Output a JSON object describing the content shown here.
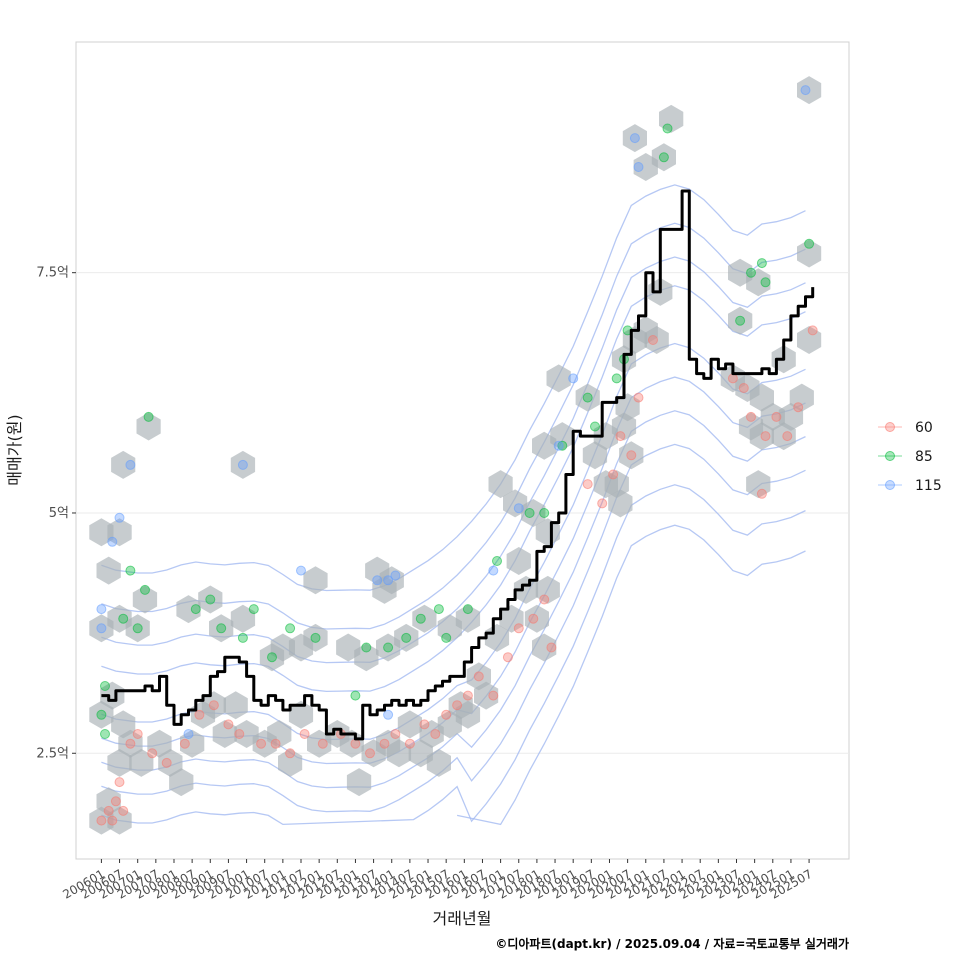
{
  "chart_data": {
    "type": "scatter",
    "title": "",
    "xlabel": "거래년월",
    "ylabel": "매매가(원)",
    "caption": "©디아파트(dapt.kr) / 2025.09.04 / 자료=국토교통부 실거래가",
    "ylim": [
      1.4,
      9.9
    ],
    "y_ticks": [
      {
        "value": 2.5,
        "label": "2.5억"
      },
      {
        "value": 5.0,
        "label": "5억"
      },
      {
        "value": 7.5,
        "label": "7.5억"
      }
    ],
    "x_range": [
      2005.3,
      2026.6
    ],
    "x_ticks": [
      "200601",
      "200607",
      "200701",
      "200707",
      "200801",
      "200807",
      "200901",
      "200907",
      "201001",
      "201007",
      "201101",
      "201107",
      "201201",
      "201207",
      "201301",
      "201307",
      "201401",
      "201407",
      "201501",
      "201507",
      "201601",
      "201607",
      "201701",
      "201707",
      "201801",
      "201807",
      "201901",
      "201907",
      "202001",
      "202007",
      "202101",
      "202107",
      "202201",
      "202207",
      "202301",
      "202307",
      "202401",
      "202407",
      "202501",
      "202507"
    ],
    "x_tick_values": [
      2006.0,
      2006.5,
      2007.0,
      2007.5,
      2008.0,
      2008.5,
      2009.0,
      2009.5,
      2010.0,
      2010.5,
      2011.0,
      2011.5,
      2012.0,
      2012.5,
      2013.0,
      2013.5,
      2014.0,
      2014.5,
      2015.0,
      2015.5,
      2016.0,
      2016.5,
      2017.0,
      2017.5,
      2018.0,
      2018.5,
      2019.0,
      2019.5,
      2020.0,
      2020.5,
      2021.0,
      2021.5,
      2022.0,
      2022.5,
      2023.0,
      2023.5,
      2024.0,
      2024.5,
      2025.0,
      2025.5
    ],
    "legend": {
      "position": "right",
      "items": [
        {
          "label": "60",
          "color": "#F8766D"
        },
        {
          "label": "85",
          "color": "#00BA38"
        },
        {
          "label": "115",
          "color": "#619CFF"
        }
      ]
    },
    "hexbins": [
      [
        2006.0,
        1.8
      ],
      [
        2006.5,
        1.8
      ],
      [
        2006.2,
        2.0
      ],
      [
        2006.5,
        2.4
      ],
      [
        2006.8,
        2.6
      ],
      [
        2007.1,
        2.4
      ],
      [
        2006.0,
        2.9
      ],
      [
        2006.3,
        3.1
      ],
      [
        2006.6,
        2.8
      ],
      [
        2007.6,
        2.6
      ],
      [
        2007.9,
        2.4
      ],
      [
        2008.2,
        2.2
      ],
      [
        2008.5,
        2.6
      ],
      [
        2008.8,
        2.9
      ],
      [
        2009.1,
        3.0
      ],
      [
        2009.4,
        2.7
      ],
      [
        2009.7,
        3.0
      ],
      [
        2010.0,
        2.7
      ],
      [
        2010.5,
        2.6
      ],
      [
        2010.9,
        2.7
      ],
      [
        2011.2,
        2.4
      ],
      [
        2011.5,
        2.9
      ],
      [
        2012.0,
        2.6
      ],
      [
        2012.5,
        2.7
      ],
      [
        2012.9,
        2.6
      ],
      [
        2013.1,
        2.2
      ],
      [
        2013.5,
        2.5
      ],
      [
        2013.9,
        2.6
      ],
      [
        2014.2,
        2.5
      ],
      [
        2014.5,
        2.8
      ],
      [
        2014.8,
        2.5
      ],
      [
        2015.1,
        2.7
      ],
      [
        2015.3,
        2.4
      ],
      [
        2015.6,
        2.8
      ],
      [
        2015.9,
        3.0
      ],
      [
        2016.1,
        2.9
      ],
      [
        2016.4,
        3.3
      ],
      [
        2016.6,
        3.1
      ],
      [
        2006.0,
        3.8
      ],
      [
        2006.5,
        3.9
      ],
      [
        2007.0,
        3.8
      ],
      [
        2007.2,
        4.1
      ],
      [
        2006.2,
        4.4
      ],
      [
        2006.5,
        4.8
      ],
      [
        2006.0,
        4.8
      ],
      [
        2006.6,
        5.5
      ],
      [
        2007.3,
        5.9
      ],
      [
        2008.4,
        4.0
      ],
      [
        2009.0,
        4.1
      ],
      [
        2009.3,
        3.8
      ],
      [
        2009.9,
        3.9
      ],
      [
        2011.0,
        3.6
      ],
      [
        2011.5,
        3.6
      ],
      [
        2011.9,
        3.7
      ],
      [
        2010.7,
        3.5
      ],
      [
        2012.8,
        3.6
      ],
      [
        2013.3,
        3.5
      ],
      [
        2013.9,
        3.6
      ],
      [
        2014.4,
        3.7
      ],
      [
        2014.9,
        3.9
      ],
      [
        2015.6,
        3.8
      ],
      [
        2016.1,
        3.9
      ],
      [
        2011.9,
        4.3
      ],
      [
        2013.6,
        4.4
      ],
      [
        2014.0,
        4.3
      ],
      [
        2013.8,
        4.2
      ],
      [
        2009.9,
        5.5
      ],
      [
        2016.9,
        3.7
      ],
      [
        2017.3,
        3.9
      ],
      [
        2017.7,
        4.2
      ],
      [
        2018.0,
        3.9
      ],
      [
        2018.3,
        4.2
      ],
      [
        2018.2,
        3.6
      ],
      [
        2017.5,
        4.5
      ],
      [
        2017.0,
        5.3
      ],
      [
        2017.4,
        5.1
      ],
      [
        2017.9,
        5.0
      ],
      [
        2018.3,
        4.8
      ],
      [
        2018.2,
        5.7
      ],
      [
        2018.7,
        5.8
      ],
      [
        2018.6,
        6.4
      ],
      [
        2019.4,
        6.2
      ],
      [
        2019.6,
        5.6
      ],
      [
        2019.9,
        5.3
      ],
      [
        2019.9,
        5.8
      ],
      [
        2020.2,
        5.3
      ],
      [
        2020.4,
        5.9
      ],
      [
        2020.5,
        6.1
      ],
      [
        2020.4,
        6.6
      ],
      [
        2020.7,
        6.8
      ],
      [
        2021.0,
        6.9
      ],
      [
        2021.4,
        7.3
      ],
      [
        2021.3,
        6.8
      ],
      [
        2020.7,
        8.9
      ],
      [
        2021.0,
        8.6
      ],
      [
        2021.5,
        8.7
      ],
      [
        2021.7,
        9.1
      ],
      [
        2020.3,
        5.1
      ],
      [
        2023.6,
        7.5
      ],
      [
        2024.1,
        7.4
      ],
      [
        2023.6,
        7.0
      ],
      [
        2023.4,
        6.4
      ],
      [
        2023.8,
        6.3
      ],
      [
        2023.9,
        5.9
      ],
      [
        2024.2,
        5.8
      ],
      [
        2024.5,
        6.0
      ],
      [
        2024.2,
        6.2
      ],
      [
        2024.8,
        5.8
      ],
      [
        2025.0,
        6.0
      ],
      [
        2025.3,
        6.2
      ],
      [
        2024.8,
        6.6
      ],
      [
        2025.5,
        6.8
      ],
      [
        2025.5,
        7.7
      ],
      [
        2025.5,
        9.4
      ],
      [
        2024.1,
        5.3
      ],
      [
        2020.6,
        5.6
      ]
    ],
    "scatter_points": [
      {
        "x": 2006.0,
        "y": 1.8,
        "s": "60"
      },
      {
        "x": 2006.2,
        "y": 1.9,
        "s": "60"
      },
      {
        "x": 2006.4,
        "y": 2.0,
        "s": "60"
      },
      {
        "x": 2006.5,
        "y": 2.2,
        "s": "60"
      },
      {
        "x": 2006.3,
        "y": 1.8,
        "s": "60"
      },
      {
        "x": 2006.6,
        "y": 1.9,
        "s": "60"
      },
      {
        "x": 2006.8,
        "y": 2.6,
        "s": "60"
      },
      {
        "x": 2007.0,
        "y": 2.7,
        "s": "60"
      },
      {
        "x": 2007.4,
        "y": 2.5,
        "s": "60"
      },
      {
        "x": 2007.8,
        "y": 2.4,
        "s": "60"
      },
      {
        "x": 2008.3,
        "y": 2.6,
        "s": "60"
      },
      {
        "x": 2008.7,
        "y": 2.9,
        "s": "60"
      },
      {
        "x": 2009.1,
        "y": 3.0,
        "s": "60"
      },
      {
        "x": 2009.5,
        "y": 2.8,
        "s": "60"
      },
      {
        "x": 2009.8,
        "y": 2.7,
        "s": "60"
      },
      {
        "x": 2010.4,
        "y": 2.6,
        "s": "60"
      },
      {
        "x": 2010.8,
        "y": 2.6,
        "s": "60"
      },
      {
        "x": 2011.2,
        "y": 2.5,
        "s": "60"
      },
      {
        "x": 2011.6,
        "y": 2.7,
        "s": "60"
      },
      {
        "x": 2012.1,
        "y": 2.6,
        "s": "60"
      },
      {
        "x": 2012.6,
        "y": 2.7,
        "s": "60"
      },
      {
        "x": 2013.0,
        "y": 2.6,
        "s": "60"
      },
      {
        "x": 2013.4,
        "y": 2.5,
        "s": "60"
      },
      {
        "x": 2013.8,
        "y": 2.6,
        "s": "60"
      },
      {
        "x": 2014.1,
        "y": 2.7,
        "s": "60"
      },
      {
        "x": 2014.5,
        "y": 2.6,
        "s": "60"
      },
      {
        "x": 2014.9,
        "y": 2.8,
        "s": "60"
      },
      {
        "x": 2015.2,
        "y": 2.7,
        "s": "60"
      },
      {
        "x": 2015.5,
        "y": 2.9,
        "s": "60"
      },
      {
        "x": 2015.8,
        "y": 3.0,
        "s": "60"
      },
      {
        "x": 2016.1,
        "y": 3.1,
        "s": "60"
      },
      {
        "x": 2016.4,
        "y": 3.3,
        "s": "60"
      },
      {
        "x": 2016.8,
        "y": 3.1,
        "s": "60"
      },
      {
        "x": 2017.2,
        "y": 3.5,
        "s": "60"
      },
      {
        "x": 2017.5,
        "y": 3.8,
        "s": "60"
      },
      {
        "x": 2017.9,
        "y": 3.9,
        "s": "60"
      },
      {
        "x": 2018.2,
        "y": 4.1,
        "s": "60"
      },
      {
        "x": 2018.4,
        "y": 3.6,
        "s": "60"
      },
      {
        "x": 2019.4,
        "y": 5.3,
        "s": "60"
      },
      {
        "x": 2019.8,
        "y": 5.1,
        "s": "60"
      },
      {
        "x": 2020.1,
        "y": 5.4,
        "s": "60"
      },
      {
        "x": 2020.3,
        "y": 5.8,
        "s": "60"
      },
      {
        "x": 2020.6,
        "y": 5.6,
        "s": "60"
      },
      {
        "x": 2020.8,
        "y": 6.2,
        "s": "60"
      },
      {
        "x": 2021.2,
        "y": 6.8,
        "s": "60"
      },
      {
        "x": 2023.4,
        "y": 6.4,
        "s": "60"
      },
      {
        "x": 2023.7,
        "y": 6.3,
        "s": "60"
      },
      {
        "x": 2023.9,
        "y": 6.0,
        "s": "60"
      },
      {
        "x": 2024.3,
        "y": 5.8,
        "s": "60"
      },
      {
        "x": 2024.6,
        "y": 6.0,
        "s": "60"
      },
      {
        "x": 2024.9,
        "y": 5.8,
        "s": "60"
      },
      {
        "x": 2025.2,
        "y": 6.1,
        "s": "60"
      },
      {
        "x": 2025.6,
        "y": 6.9,
        "s": "60"
      },
      {
        "x": 2024.2,
        "y": 5.2,
        "s": "60"
      },
      {
        "x": 2006.1,
        "y": 3.2,
        "s": "85"
      },
      {
        "x": 2006.0,
        "y": 2.9,
        "s": "85"
      },
      {
        "x": 2006.1,
        "y": 2.7,
        "s": "85"
      },
      {
        "x": 2006.6,
        "y": 3.9,
        "s": "85"
      },
      {
        "x": 2006.8,
        "y": 4.4,
        "s": "85"
      },
      {
        "x": 2007.0,
        "y": 3.8,
        "s": "85"
      },
      {
        "x": 2007.2,
        "y": 4.2,
        "s": "85"
      },
      {
        "x": 2007.3,
        "y": 6.0,
        "s": "85"
      },
      {
        "x": 2008.6,
        "y": 4.0,
        "s": "85"
      },
      {
        "x": 2009.0,
        "y": 4.1,
        "s": "85"
      },
      {
        "x": 2009.3,
        "y": 3.8,
        "s": "85"
      },
      {
        "x": 2009.9,
        "y": 3.7,
        "s": "85"
      },
      {
        "x": 2010.2,
        "y": 4.0,
        "s": "85"
      },
      {
        "x": 2010.7,
        "y": 3.5,
        "s": "85"
      },
      {
        "x": 2011.2,
        "y": 3.8,
        "s": "85"
      },
      {
        "x": 2011.9,
        "y": 3.7,
        "s": "85"
      },
      {
        "x": 2013.0,
        "y": 3.1,
        "s": "85"
      },
      {
        "x": 2013.3,
        "y": 3.6,
        "s": "85"
      },
      {
        "x": 2013.9,
        "y": 3.6,
        "s": "85"
      },
      {
        "x": 2014.4,
        "y": 3.7,
        "s": "85"
      },
      {
        "x": 2014.8,
        "y": 3.9,
        "s": "85"
      },
      {
        "x": 2015.3,
        "y": 4.0,
        "s": "85"
      },
      {
        "x": 2015.5,
        "y": 3.7,
        "s": "85"
      },
      {
        "x": 2016.1,
        "y": 4.0,
        "s": "85"
      },
      {
        "x": 2016.9,
        "y": 4.5,
        "s": "85"
      },
      {
        "x": 2017.8,
        "y": 5.0,
        "s": "85"
      },
      {
        "x": 2018.2,
        "y": 5.0,
        "s": "85"
      },
      {
        "x": 2018.7,
        "y": 5.7,
        "s": "85"
      },
      {
        "x": 2019.4,
        "y": 6.2,
        "s": "85"
      },
      {
        "x": 2019.6,
        "y": 5.9,
        "s": "85"
      },
      {
        "x": 2020.2,
        "y": 6.4,
        "s": "85"
      },
      {
        "x": 2020.5,
        "y": 6.9,
        "s": "85"
      },
      {
        "x": 2020.4,
        "y": 6.6,
        "s": "85"
      },
      {
        "x": 2021.5,
        "y": 8.7,
        "s": "85"
      },
      {
        "x": 2021.6,
        "y": 9.0,
        "s": "85"
      },
      {
        "x": 2023.6,
        "y": 7.0,
        "s": "85"
      },
      {
        "x": 2023.9,
        "y": 7.5,
        "s": "85"
      },
      {
        "x": 2024.2,
        "y": 7.6,
        "s": "85"
      },
      {
        "x": 2024.3,
        "y": 7.4,
        "s": "85"
      },
      {
        "x": 2025.5,
        "y": 7.8,
        "s": "85"
      },
      {
        "x": 2006.0,
        "y": 4.0,
        "s": "115"
      },
      {
        "x": 2006.0,
        "y": 3.8,
        "s": "115"
      },
      {
        "x": 2006.3,
        "y": 4.7,
        "s": "115"
      },
      {
        "x": 2006.5,
        "y": 4.95,
        "s": "115"
      },
      {
        "x": 2006.8,
        "y": 5.5,
        "s": "115"
      },
      {
        "x": 2009.9,
        "y": 5.5,
        "s": "115"
      },
      {
        "x": 2011.5,
        "y": 4.4,
        "s": "115"
      },
      {
        "x": 2013.6,
        "y": 4.3,
        "s": "115"
      },
      {
        "x": 2013.9,
        "y": 4.3,
        "s": "115"
      },
      {
        "x": 2014.1,
        "y": 4.35,
        "s": "115"
      },
      {
        "x": 2016.8,
        "y": 4.4,
        "s": "115"
      },
      {
        "x": 2017.5,
        "y": 5.05,
        "s": "115"
      },
      {
        "x": 2018.6,
        "y": 5.7,
        "s": "115"
      },
      {
        "x": 2019.0,
        "y": 6.4,
        "s": "115"
      },
      {
        "x": 2020.7,
        "y": 8.9,
        "s": "115"
      },
      {
        "x": 2020.8,
        "y": 8.6,
        "s": "115"
      },
      {
        "x": 2025.4,
        "y": 9.4,
        "s": "115"
      },
      {
        "x": 2013.9,
        "y": 2.9,
        "s": "115"
      },
      {
        "x": 2008.4,
        "y": 2.7,
        "s": "115"
      }
    ],
    "trend_line": {
      "name": "moving-average",
      "x": [
        2006.0,
        2006.2,
        2006.4,
        2006.7,
        2007.0,
        2007.2,
        2007.4,
        2007.6,
        2007.8,
        2008.0,
        2008.2,
        2008.4,
        2008.6,
        2008.8,
        2009.0,
        2009.2,
        2009.4,
        2009.6,
        2009.8,
        2010.0,
        2010.2,
        2010.4,
        2010.6,
        2010.8,
        2011.0,
        2011.2,
        2011.4,
        2011.6,
        2011.8,
        2012.0,
        2012.2,
        2012.4,
        2012.6,
        2012.8,
        2013.0,
        2013.2,
        2013.4,
        2013.6,
        2013.8,
        2014.0,
        2014.2,
        2014.4,
        2014.6,
        2014.8,
        2015.0,
        2015.2,
        2015.4,
        2015.6,
        2015.8,
        2016.0,
        2016.2,
        2016.4,
        2016.6,
        2016.8,
        2017.0,
        2017.2,
        2017.4,
        2017.6,
        2017.8,
        2018.0,
        2018.2,
        2018.4,
        2018.6,
        2018.8,
        2019.0,
        2019.2,
        2019.4,
        2019.6,
        2019.8,
        2020.0,
        2020.2,
        2020.4,
        2020.6,
        2020.8,
        2021.0,
        2021.2,
        2021.4,
        2021.6,
        2021.8,
        2022.0,
        2022.2,
        2022.4,
        2022.6,
        2022.8,
        2023.0,
        2023.2,
        2023.4,
        2023.6,
        2023.8,
        2024.0,
        2024.2,
        2024.4,
        2024.6,
        2024.8,
        2025.0,
        2025.2,
        2025.4,
        2025.6
      ],
      "y": [
        3.1,
        3.05,
        3.15,
        3.15,
        3.15,
        3.2,
        3.15,
        3.3,
        3.0,
        2.8,
        2.9,
        2.95,
        3.05,
        3.1,
        3.3,
        3.35,
        3.5,
        3.5,
        3.45,
        3.3,
        3.05,
        3.0,
        3.1,
        3.05,
        2.95,
        3.0,
        3.0,
        3.1,
        3.0,
        2.95,
        2.7,
        2.75,
        2.7,
        2.7,
        2.65,
        3.0,
        2.9,
        2.95,
        3.0,
        3.05,
        3.0,
        3.05,
        3.0,
        3.05,
        3.15,
        3.2,
        3.25,
        3.3,
        3.3,
        3.45,
        3.6,
        3.7,
        3.75,
        3.9,
        4.0,
        4.1,
        4.2,
        4.25,
        4.3,
        4.6,
        4.65,
        4.9,
        5.0,
        5.4,
        5.85,
        5.8,
        5.8,
        5.8,
        6.15,
        6.15,
        6.2,
        6.65,
        6.9,
        7.05,
        7.5,
        7.3,
        7.95,
        7.95,
        7.95,
        8.35,
        6.6,
        6.45,
        6.4,
        6.6,
        6.5,
        6.55,
        6.45,
        6.45,
        6.45,
        6.45,
        6.5,
        6.45,
        6.6,
        6.8,
        7.05,
        7.15,
        7.25,
        7.35
      ]
    }
  }
}
